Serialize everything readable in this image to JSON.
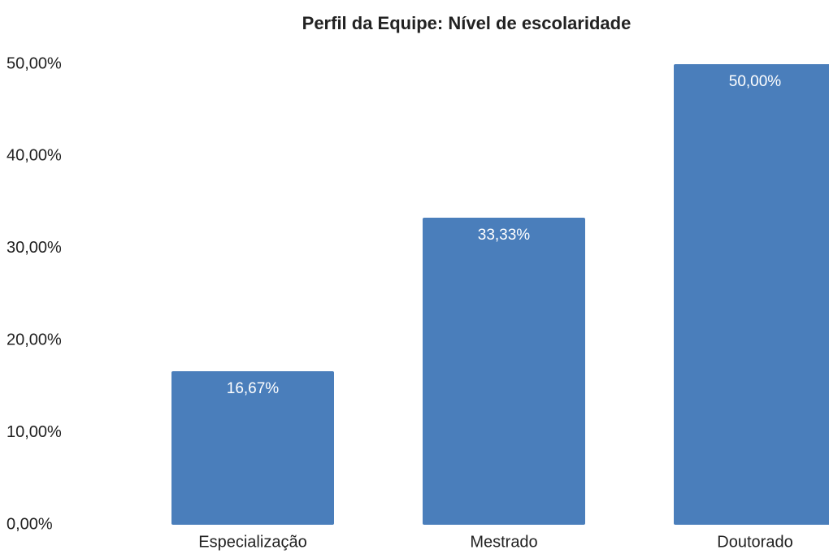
{
  "chart_data": {
    "type": "bar",
    "title": "Perfil da Equipe: Nível de escolaridade",
    "categories": [
      "Especialização",
      "Mestrado",
      "Doutorado"
    ],
    "values": [
      16.67,
      33.33,
      50
    ],
    "value_labels": [
      "16,67%",
      "33,33%",
      "50,00%"
    ],
    "color": "#4a7ebb",
    "ylim": [
      0,
      50
    ],
    "yticks": [
      {
        "value": 0,
        "label": "0,00%"
      },
      {
        "value": 10,
        "label": "10,00%"
      },
      {
        "value": 20,
        "label": "20,00%"
      },
      {
        "value": 30,
        "label": "30,00%"
      },
      {
        "value": 40,
        "label": "40,00%"
      },
      {
        "value": 50,
        "label": "50,00%"
      }
    ],
    "grid": false
  }
}
